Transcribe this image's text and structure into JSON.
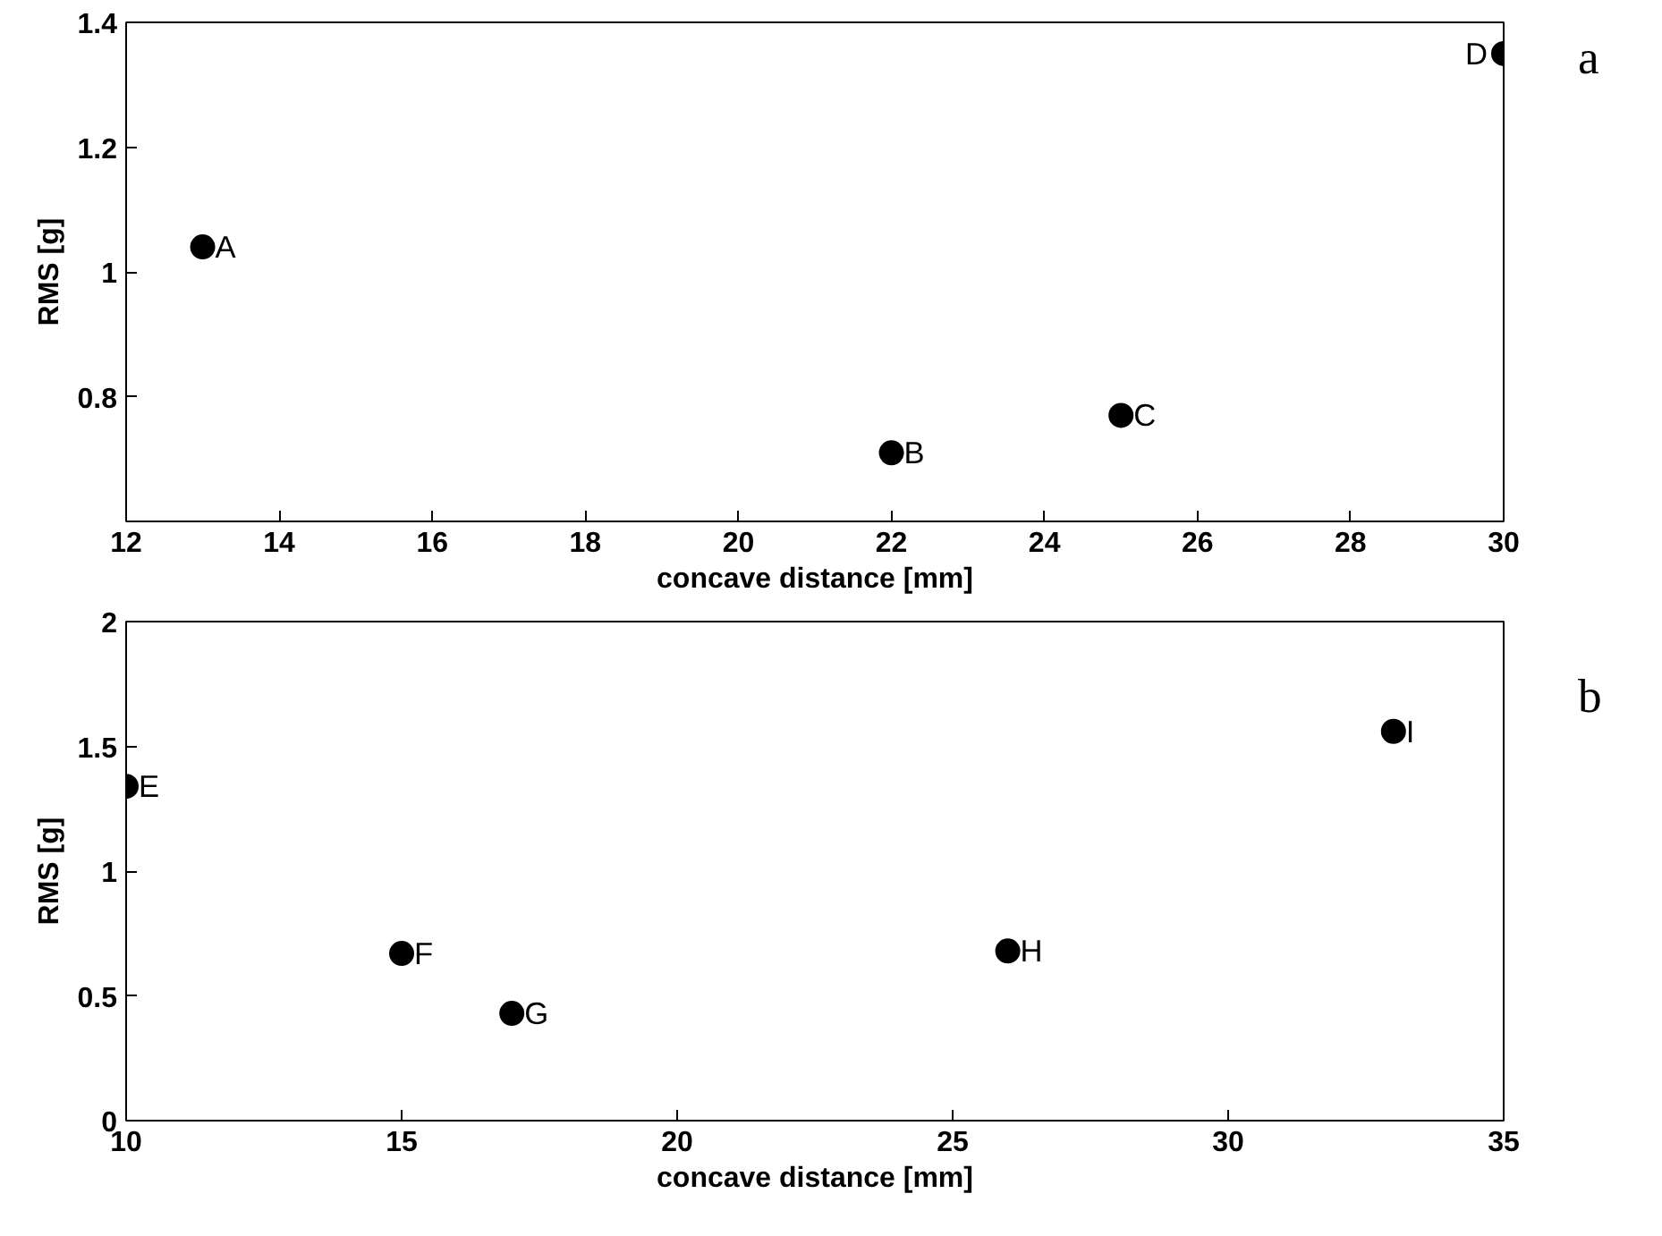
{
  "chart_data": [
    {
      "type": "scatter",
      "xlabel": "concave distance [mm]",
      "ylabel": "RMS [g]",
      "x": [
        13,
        22,
        25,
        30
      ],
      "values": [
        1.04,
        0.71,
        0.77,
        1.35
      ],
      "color": "#000000",
      "marker": "circle",
      "xlim": [
        12,
        30
      ],
      "xticks": [
        12,
        14,
        16,
        18,
        20,
        22,
        24,
        26,
        28,
        30
      ],
      "ylim": [
        0.6,
        1.4
      ],
      "yticks": [
        0.8,
        1,
        1.2,
        1.4
      ],
      "grid": false,
      "annotations": [
        {
          "text": "A",
          "x": 13,
          "y": 1.04
        },
        {
          "text": "B",
          "x": 22,
          "y": 0.71
        },
        {
          "text": "C",
          "x": 25,
          "y": 0.77
        },
        {
          "text": "D",
          "x": 30,
          "y": 1.35
        },
        "a"
      ]
    },
    {
      "type": "scatter",
      "xlabel": "concave distance [mm]",
      "ylabel": "RMS [g]",
      "x": [
        10,
        15,
        17,
        26,
        33
      ],
      "values": [
        1.34,
        0.67,
        0.43,
        0.68,
        1.56
      ],
      "color": "#000000",
      "marker": "circle",
      "xlim": [
        10,
        35
      ],
      "xticks": [
        10,
        15,
        20,
        25,
        30,
        35
      ],
      "ylim": [
        0,
        2
      ],
      "yticks": [
        0,
        0.5,
        1,
        1.5,
        2
      ],
      "grid": false,
      "annotations": [
        {
          "text": "E",
          "x": 10,
          "y": 1.34
        },
        {
          "text": "F",
          "x": 15,
          "y": 0.67
        },
        {
          "text": "G",
          "x": 17,
          "y": 0.43
        },
        {
          "text": "H",
          "x": 26,
          "y": 0.68
        },
        {
          "text": "I",
          "x": 33,
          "y": 1.56
        },
        "b"
      ]
    }
  ]
}
